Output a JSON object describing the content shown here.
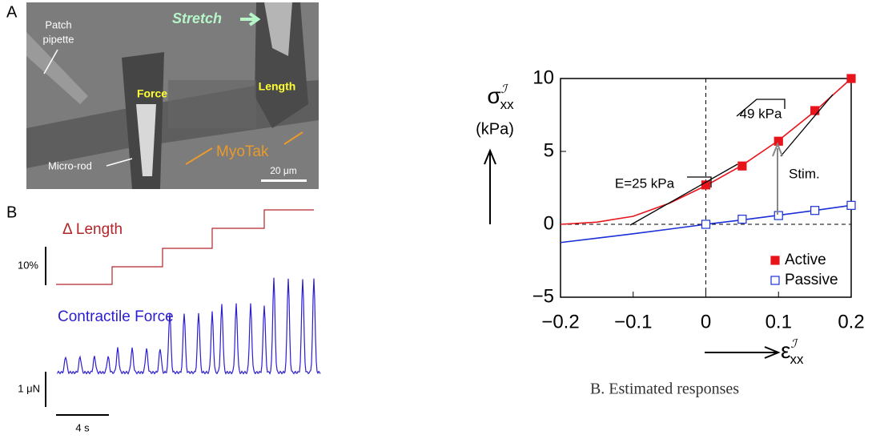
{
  "panel_a": {
    "label": "A",
    "stretch": "Stretch",
    "patch_pipette": [
      "Patch",
      "pipette"
    ],
    "force": "Force",
    "length": "Length",
    "micro_rod": "Micro-rod",
    "myotak": "MyoTak",
    "scale_bar": "20 μm"
  },
  "panel_b": {
    "label": "B",
    "length_trace": "Δ Length",
    "length_scale": "10%",
    "force_trace": "Contractile Force",
    "force_scale": "1 μN",
    "time_scale": "4 s"
  },
  "chart_data": {
    "type": "scatter",
    "y_label": {
      "symbol": "σ",
      "sup": "ℐ",
      "sub": "xx",
      "unit": "(kPa)"
    },
    "x_label": {
      "symbol": "ε",
      "sup": "ℐ",
      "sub": "xx"
    },
    "xlim": [
      -0.2,
      0.2
    ],
    "ylim": [
      -5,
      10
    ],
    "xticks": [
      {
        "value": -0.2,
        "label": "−0.2"
      },
      {
        "value": -0.1,
        "label": "−0.1"
      },
      0,
      0.1,
      0.2
    ],
    "yticks": [
      {
        "value": -5,
        "label": "−5"
      },
      0,
      5,
      10
    ],
    "series": [
      {
        "name": "Active",
        "color": "#e8141c",
        "fill": "#e8141c",
        "x": [
          0,
          0.05,
          0.1,
          0.15,
          0.2
        ],
        "values": [
          2.7,
          4.0,
          5.7,
          7.8,
          10.0
        ]
      },
      {
        "name": "Passive",
        "color": "#1a2fd6",
        "fill": "#ffffff",
        "x": [
          0,
          0.05,
          0.1,
          0.15,
          0.2
        ],
        "values": [
          0,
          0.35,
          0.6,
          0.95,
          1.3
        ]
      }
    ],
    "fit_lines": [
      {
        "color": "#e8141c",
        "x": [
          -0.2,
          -0.15,
          -0.1,
          -0.05,
          0,
          0.05,
          0.1,
          0.15,
          0.2
        ],
        "values": [
          0,
          0.15,
          0.55,
          1.45,
          2.65,
          4.05,
          5.75,
          7.75,
          10.0
        ]
      },
      {
        "color": "#1a2fd6",
        "x": [
          -0.2,
          -0.15,
          -0.1,
          -0.05,
          0,
          0.05,
          0.1,
          0.15,
          0.2
        ],
        "values": [
          -1.25,
          -0.95,
          -0.65,
          -0.33,
          0,
          0.3,
          0.62,
          0.95,
          1.3
        ]
      }
    ],
    "annotations": [
      "E=25 kPa",
      "49 kPa",
      "Stim."
    ],
    "legend": "lower right"
  },
  "caption": "B. Estimated responses"
}
